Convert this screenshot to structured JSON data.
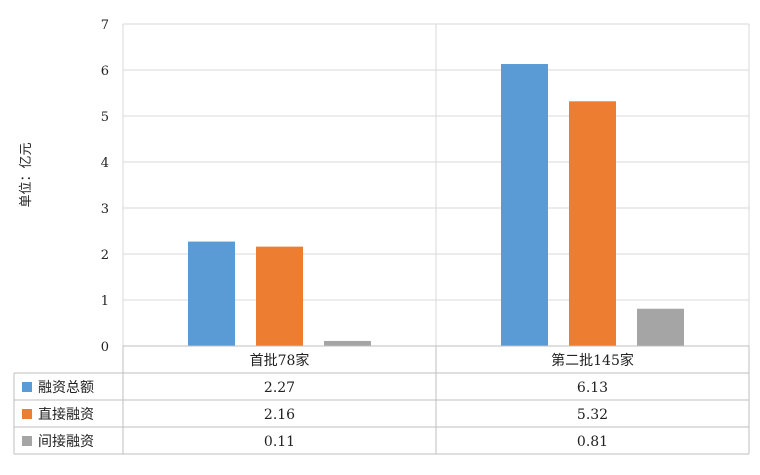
{
  "chart_data": {
    "type": "bar",
    "ylabel": "单位：亿元",
    "ylim": [
      0,
      7
    ],
    "yticks": [
      0,
      1,
      2,
      3,
      4,
      5,
      6,
      7
    ],
    "grid": true,
    "categories": [
      "首批78家",
      "第二批145家"
    ],
    "series": [
      {
        "name": "融资总额",
        "color": "#5b9bd5",
        "values": [
          2.27,
          6.13
        ],
        "labels": [
          "2.27",
          "6.13"
        ]
      },
      {
        "name": "直接融资",
        "color": "#ed7d31",
        "values": [
          2.16,
          5.32
        ],
        "labels": [
          "2.16",
          "5.32"
        ]
      },
      {
        "name": "间接融资",
        "color": "#a5a5a5",
        "values": [
          0.11,
          0.81
        ],
        "labels": [
          "0.11",
          "0.81"
        ]
      }
    ],
    "legend": "data-table"
  }
}
